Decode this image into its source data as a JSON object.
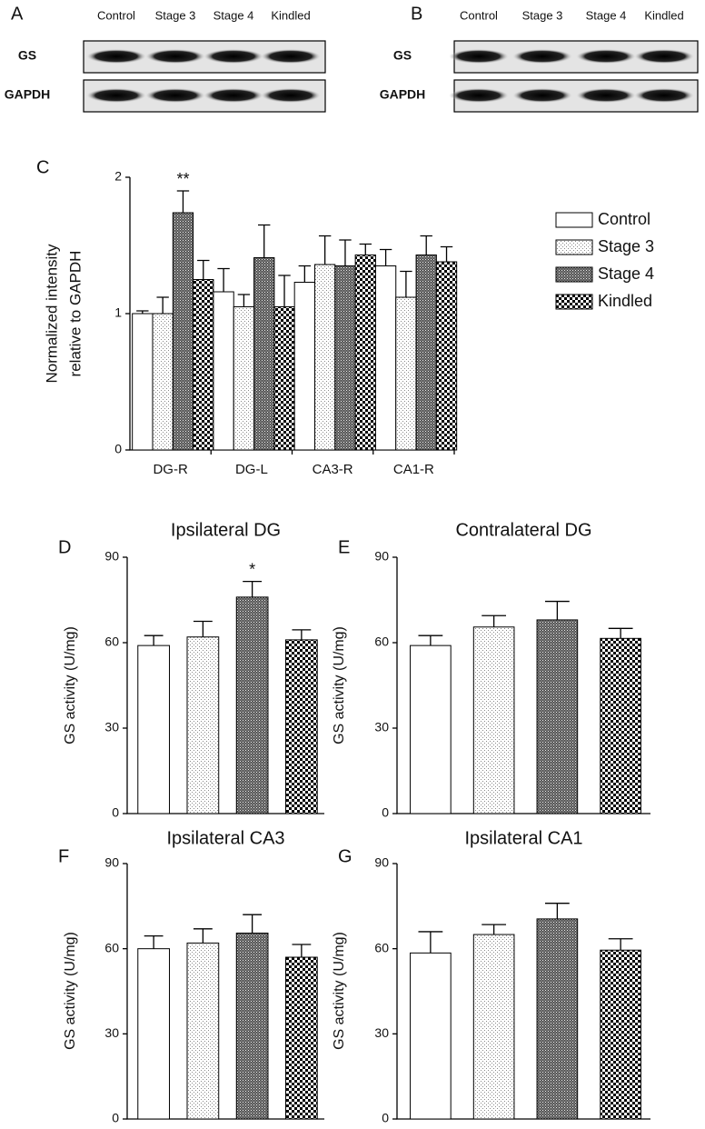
{
  "blots": [
    {
      "panel": "A",
      "lanes": [
        "Control",
        "Stage 3",
        "Stage 4",
        "Kindled"
      ],
      "rows": [
        "GS",
        "GAPDH"
      ]
    },
    {
      "panel": "B",
      "lanes": [
        "Control",
        "Stage 3",
        "Stage 4",
        "Kindled"
      ],
      "rows": [
        "GS",
        "GAPDH"
      ]
    }
  ],
  "chart_data": [
    {
      "type": "bar",
      "panel": "C",
      "ylabel": [
        "Normalized intensity",
        "relative to GAPDH"
      ],
      "categories": [
        "DG-R",
        "DG-L",
        "CA3-R",
        "CA1-R"
      ],
      "series": [
        {
          "name": "Control",
          "pattern": "none",
          "values": [
            1.0,
            1.16,
            1.23,
            1.35
          ],
          "errors": [
            0.02,
            0.17,
            0.12,
            0.12
          ]
        },
        {
          "name": "Stage 3",
          "pattern": "dots",
          "values": [
            1.0,
            1.05,
            1.36,
            1.12
          ],
          "errors": [
            0.12,
            0.09,
            0.21,
            0.19
          ]
        },
        {
          "name": "Stage 4",
          "pattern": "hatch",
          "values": [
            1.74,
            1.41,
            1.35,
            1.43
          ],
          "errors": [
            0.16,
            0.24,
            0.19,
            0.14
          ],
          "significance": [
            "**",
            null,
            null,
            null
          ]
        },
        {
          "name": "Kindled",
          "pattern": "checker",
          "values": [
            1.25,
            1.05,
            1.43,
            1.38
          ],
          "errors": [
            0.14,
            0.23,
            0.08,
            0.11
          ]
        }
      ],
      "ylim": [
        0,
        2
      ],
      "yticks": [
        0,
        1,
        2
      ],
      "legend": "right"
    },
    {
      "type": "bar",
      "panel": "D",
      "title": "Ipsilateral DG",
      "ylabel": "GS activity (U/mg)",
      "categories": [
        null,
        null,
        null,
        null
      ],
      "values": [
        59,
        62,
        76,
        61
      ],
      "errors": [
        3.5,
        5.5,
        5.5,
        3.5
      ],
      "patterns": [
        "none",
        "dots",
        "hatch",
        "checker"
      ],
      "significance": [
        null,
        null,
        "*",
        null
      ],
      "ylim": [
        0,
        90
      ],
      "yticks": [
        0,
        30,
        60,
        90
      ]
    },
    {
      "type": "bar",
      "panel": "E",
      "title": "Contralateral DG",
      "ylabel": "GS activity (U/mg)",
      "categories": [
        null,
        null,
        null,
        null
      ],
      "values": [
        59,
        65.5,
        68,
        61.5
      ],
      "errors": [
        3.5,
        4,
        6.5,
        3.5
      ],
      "patterns": [
        "none",
        "dots",
        "hatch",
        "checker"
      ],
      "ylim": [
        0,
        90
      ],
      "yticks": [
        0,
        30,
        60,
        90
      ]
    },
    {
      "type": "bar",
      "panel": "F",
      "title": "Ipsilateral CA3",
      "ylabel": "GS activity (U/mg)",
      "categories": [
        null,
        null,
        null,
        null
      ],
      "values": [
        60,
        62,
        65.5,
        57
      ],
      "errors": [
        4.5,
        5,
        6.5,
        4.5
      ],
      "patterns": [
        "none",
        "dots",
        "hatch",
        "checker"
      ],
      "ylim": [
        0,
        90
      ],
      "yticks": [
        0,
        30,
        60,
        90
      ]
    },
    {
      "type": "bar",
      "panel": "G",
      "title": "Ipsilateral CA1",
      "ylabel": "GS activity (U/mg)",
      "categories": [
        null,
        null,
        null,
        null
      ],
      "values": [
        58.5,
        65,
        70.5,
        59.5
      ],
      "errors": [
        7.5,
        3.5,
        5.5,
        4
      ],
      "patterns": [
        "none",
        "dots",
        "hatch",
        "checker"
      ],
      "ylim": [
        0,
        90
      ],
      "yticks": [
        0,
        30,
        60,
        90
      ]
    }
  ]
}
